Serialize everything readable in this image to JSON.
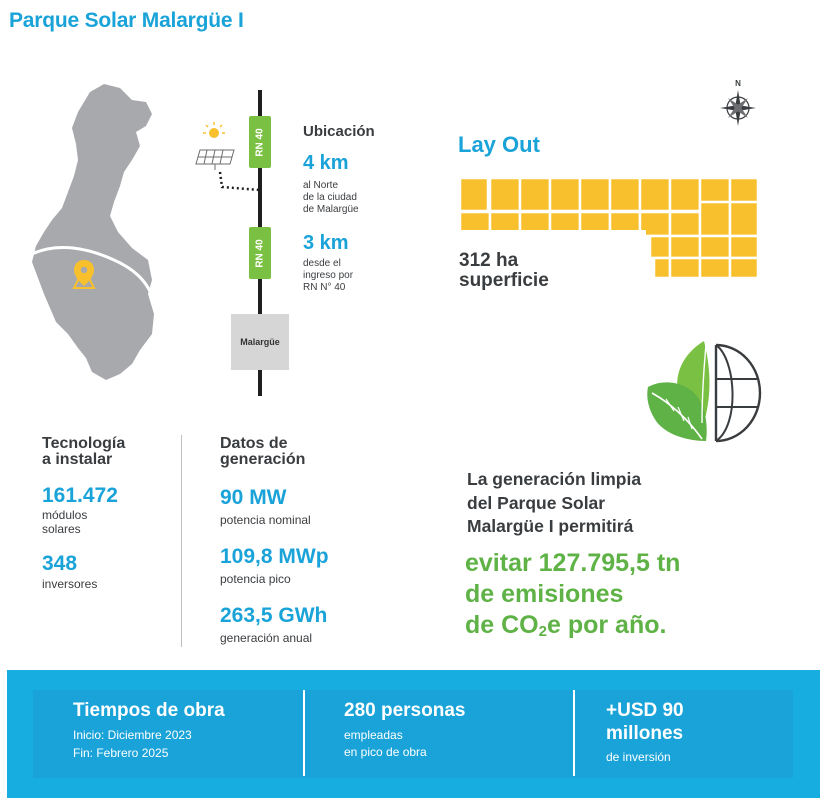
{
  "title": "Parque Solar Malargüe I",
  "location": {
    "heading": "Ubicación",
    "road_badge": "RN 40",
    "town_label": "Malargüe",
    "distance_1": {
      "value": "4 km",
      "desc": [
        "al Norte",
        "de la ciudad",
        "de Malargüe"
      ]
    },
    "distance_2": {
      "value": "3 km",
      "desc": [
        "desde el",
        "ingreso por",
        "RN N° 40"
      ]
    }
  },
  "layout": {
    "heading": "Lay Out",
    "area_value": "312 ha",
    "area_label": "superficie",
    "compass_label": "N"
  },
  "technology": {
    "heading_lines": [
      "Tecnología",
      "a instalar"
    ],
    "modules_value": "161.472",
    "modules_label_lines": [
      "módulos",
      "solares"
    ],
    "inverters_value": "348",
    "inverters_label": "inversores"
  },
  "generation_data": {
    "heading_lines": [
      "Datos de",
      "generación"
    ],
    "items": [
      {
        "value": "90 MW",
        "label": "potencia nominal"
      },
      {
        "value": "109,8 MWp",
        "label": "potencia pico"
      },
      {
        "value": "263,5 GWh",
        "label": "generación anual"
      }
    ]
  },
  "impact": {
    "text_lines": [
      "La generación limpia",
      "del Parque Solar",
      "Malargüe I permitirá"
    ],
    "highlight_line_1": "evitar 127.795,5 tn",
    "highlight_line_2": "de emisiones",
    "highlight_co2_prefix": "de CO",
    "highlight_co2_sub": "2",
    "highlight_co2_suffix": "e por año."
  },
  "footer": {
    "works": {
      "title": "Tiempos de obra",
      "start": "Inicio: Diciembre 2023",
      "end": "Fin:  Febrero 2025"
    },
    "people": {
      "title": "280 personas",
      "line_1": "empleadas",
      "line_2": "en pico de obra"
    },
    "investment": {
      "title_line_1": "+USD 90",
      "title_line_2": "millones",
      "label": "de inversión"
    }
  },
  "colors": {
    "brand_blue": "#1aa3d8",
    "green": "#5fb246",
    "road_green": "#7ac143",
    "solar_yellow": "#f9c02e",
    "map_gray": "#a7a9ac",
    "footer_blue": "#17ade0"
  },
  "icons": [
    "location-pin-icon",
    "solar-panel-icon",
    "compass-icon",
    "leaf-globe-icon"
  ]
}
